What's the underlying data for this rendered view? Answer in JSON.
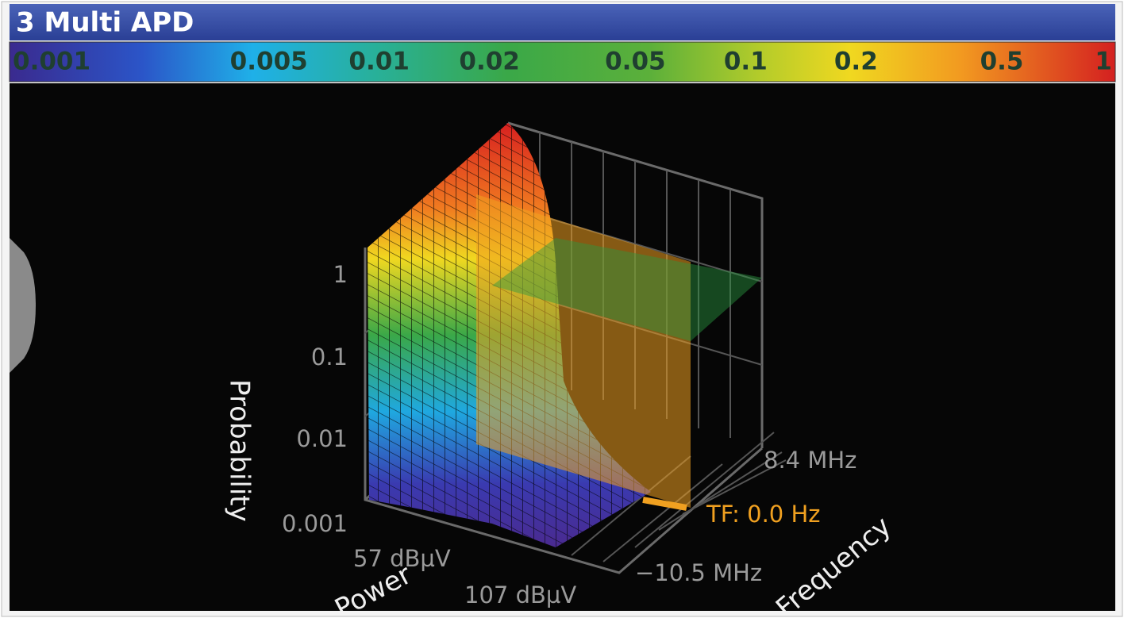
{
  "window": {
    "title": "3 Multi APD"
  },
  "colorbar": {
    "ticks": [
      0.001,
      0.005,
      0.01,
      0.02,
      0.05,
      0.1,
      0.2,
      0.5,
      1
    ],
    "lim": [
      0.001,
      1
    ],
    "log": true
  },
  "plot": {
    "z_axis": {
      "title": "Probability",
      "ticks": [
        "1",
        "0.1",
        "0.01",
        "0.001"
      ]
    },
    "power_axis": {
      "title": "Power",
      "ticks": [
        "57 dBµV",
        "107 dBµV"
      ]
    },
    "frequency_axis": {
      "title": "Frequency",
      "ticks": [
        "8.4 MHz",
        "TF: 0.0 Hz",
        "−10.5 MHz"
      ]
    }
  }
}
